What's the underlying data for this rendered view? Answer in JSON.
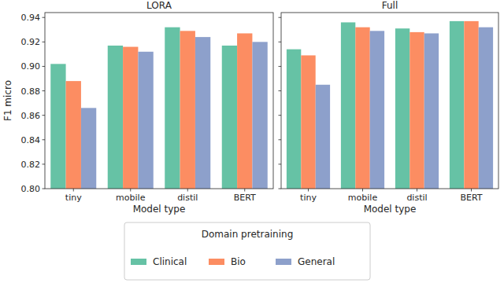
{
  "chart_data": [
    {
      "type": "bar",
      "title": "LORA",
      "x_label": "Model type",
      "y_label": "F1 micro",
      "categories": [
        "tiny",
        "mobile",
        "distil",
        "BERT"
      ],
      "series": [
        {
          "name": "Clinical",
          "color": "#66c2a5",
          "values": [
            0.902,
            0.917,
            0.932,
            0.917
          ]
        },
        {
          "name": "Bio",
          "color": "#fc8d62",
          "values": [
            0.888,
            0.916,
            0.929,
            0.927
          ]
        },
        {
          "name": "General",
          "color": "#8da0cb",
          "values": [
            0.866,
            0.912,
            0.924,
            0.92
          ]
        }
      ],
      "ylim": [
        0.8,
        0.944
      ],
      "yticks": [
        {
          "value": 0.8,
          "label": "0.80"
        },
        0.82,
        0.84,
        0.86,
        0.88,
        {
          "value": 0.9,
          "label": "0.90"
        },
        0.92,
        0.94
      ],
      "legend": "bottom",
      "legend_title": "Domain pretraining"
    },
    {
      "type": "bar",
      "title": "Full",
      "x_label": "Model type",
      "categories": [
        "tiny",
        "mobile",
        "distil",
        "BERT"
      ],
      "series": [
        {
          "name": "Clinical",
          "color": "#66c2a5",
          "values": [
            0.914,
            0.936,
            0.931,
            0.937
          ]
        },
        {
          "name": "Bio",
          "color": "#fc8d62",
          "values": [
            0.909,
            0.932,
            0.928,
            0.937
          ]
        },
        {
          "name": "General",
          "color": "#8da0cb",
          "values": [
            0.885,
            0.929,
            0.927,
            0.932
          ]
        }
      ],
      "ylim": [
        0.8,
        0.944
      ],
      "yticks": [
        {
          "value": 0.8,
          "label": "0.80"
        },
        0.82,
        0.84,
        0.86,
        0.88,
        {
          "value": 0.9,
          "label": "0.90"
        },
        0.92,
        0.94
      ],
      "tick_labels": "x"
    }
  ]
}
